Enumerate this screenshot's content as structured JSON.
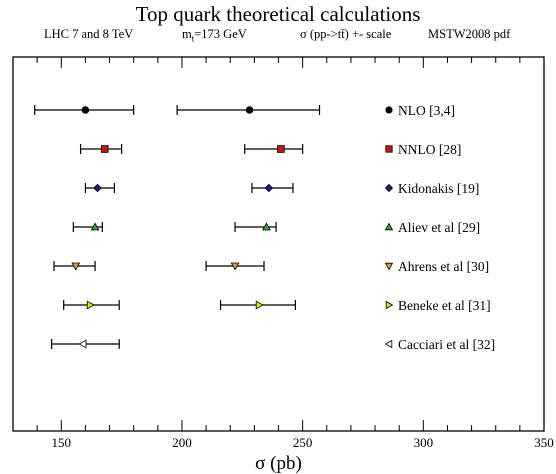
{
  "title": "Top quark theoretical calculations",
  "subtitle": {
    "energy": "LHC 7 and 8 TeV",
    "mass_prefix": "m",
    "mass_sub": "t",
    "mass_suffix": "=173 GeV",
    "sigma_label": "σ (pp->tt̄) +- scale",
    "pdf": "MSTW2008 pdf"
  },
  "chart_data": {
    "type": "scatter",
    "title": "Top quark theoretical calculations",
    "xlabel": "σ (pb)",
    "ylabel": "",
    "xlim": [
      130,
      350
    ],
    "x_ticks": [
      150,
      200,
      250,
      300,
      350
    ],
    "grid": false,
    "legend_position": "right",
    "series": [
      {
        "name": "NLO [3,4]",
        "marker": "circle",
        "color": "#000000",
        "points": [
          {
            "x": 160,
            "xmin": 139,
            "xmax": 180
          },
          {
            "x": 228,
            "xmin": 198,
            "xmax": 257
          }
        ]
      },
      {
        "name": "NNLO [28]",
        "marker": "square",
        "color": "#cc1111",
        "points": [
          {
            "x": 168,
            "xmin": 158,
            "xmax": 175
          },
          {
            "x": 241,
            "xmin": 226,
            "xmax": 250
          }
        ]
      },
      {
        "name": "Kidonakis [19]",
        "marker": "diamond",
        "color": "#1a1a99",
        "points": [
          {
            "x": 165,
            "xmin": 160,
            "xmax": 172
          },
          {
            "x": 236,
            "xmin": 229,
            "xmax": 246
          }
        ]
      },
      {
        "name": "Aliev et al [29]",
        "marker": "triangle-up",
        "color": "#33aa33",
        "points": [
          {
            "x": 164,
            "xmin": 155,
            "xmax": 167
          },
          {
            "x": 235,
            "xmin": 222,
            "xmax": 239
          }
        ]
      },
      {
        "name": "Ahrens et al [30]",
        "marker": "triangle-down",
        "color": "#d4a020",
        "points": [
          {
            "x": 156,
            "xmin": 147,
            "xmax": 164
          },
          {
            "x": 222,
            "xmin": 210,
            "xmax": 234
          }
        ]
      },
      {
        "name": "Beneke et al [31]",
        "marker": "triangle-right",
        "color": "#e6e600",
        "points": [
          {
            "x": 162,
            "xmin": 151,
            "xmax": 174
          },
          {
            "x": 232,
            "xmin": 216,
            "xmax": 247
          }
        ]
      },
      {
        "name": "Cacciari et al [32]",
        "marker": "triangle-left",
        "color": "#ffffff",
        "points": [
          {
            "x": 159,
            "xmin": 146,
            "xmax": 174
          }
        ]
      }
    ]
  }
}
